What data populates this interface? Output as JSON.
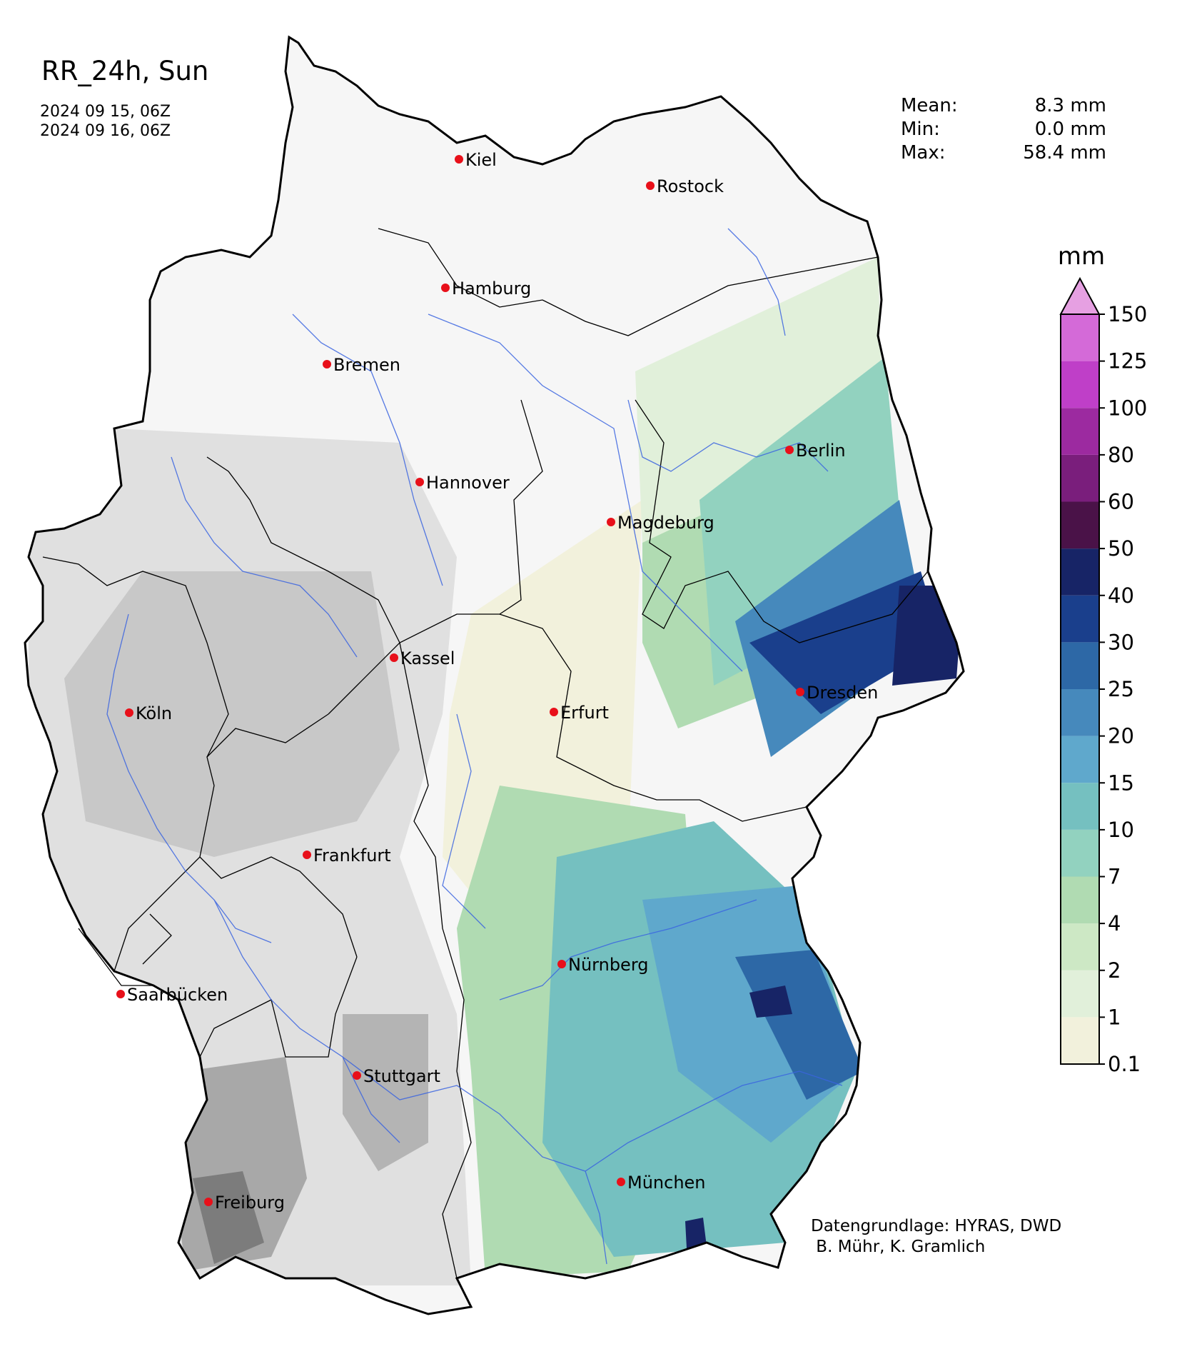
{
  "header": {
    "title": "RR_24h, Sun",
    "period_start": "2024 09 15, 06Z",
    "period_end": "2024 09 16, 06Z"
  },
  "stats": [
    {
      "label": "Mean:",
      "value": "8.3 mm"
    },
    {
      "label": "Min:",
      "value": "0.0 mm"
    },
    {
      "label": "Max:",
      "value": "58.4 mm"
    }
  ],
  "colorbar": {
    "unit": "mm",
    "levels": [
      "0.1",
      "1",
      "2",
      "4",
      "7",
      "10",
      "15",
      "20",
      "25",
      "30",
      "40",
      "50",
      "60",
      "80",
      "100",
      "125",
      "150"
    ],
    "colors": [
      "#f2f1dc",
      "#e1f0da",
      "#cde8c5",
      "#b0dbb2",
      "#92d2bf",
      "#75c0c0",
      "#5fa8cc",
      "#4689bc",
      "#2d68a6",
      "#1a3f8c",
      "#172466",
      "#4a1248",
      "#7a1e7c",
      "#9c2aa0",
      "#bf3fc8",
      "#d46ad8",
      "#e6a0e2"
    ]
  },
  "cities": [
    {
      "name": "Kiel",
      "id": "kiel"
    },
    {
      "name": "Rostock",
      "id": "rostock"
    },
    {
      "name": "Hamburg",
      "id": "hamburg"
    },
    {
      "name": "Bremen",
      "id": "bremen"
    },
    {
      "name": "Berlin",
      "id": "berlin"
    },
    {
      "name": "Hannover",
      "id": "hannover"
    },
    {
      "name": "Magdeburg",
      "id": "magdeburg"
    },
    {
      "name": "Kassel",
      "id": "kassel"
    },
    {
      "name": "Dresden",
      "id": "dresden"
    },
    {
      "name": "Köln",
      "id": "koeln"
    },
    {
      "name": "Erfurt",
      "id": "erfurt"
    },
    {
      "name": "Frankfurt",
      "id": "frankfurt"
    },
    {
      "name": "Nürnberg",
      "id": "nuernberg"
    },
    {
      "name": "Saarbücken",
      "id": "saarbruecken"
    },
    {
      "name": "Stuttgart",
      "id": "stuttgart"
    },
    {
      "name": "München",
      "id": "muenchen"
    },
    {
      "name": "Freiburg",
      "id": "freiburg"
    }
  ],
  "credit": {
    "line1": "Datengrundlage: HYRAS, DWD",
    "line2": " B. Mühr, K. Gramlich"
  }
}
